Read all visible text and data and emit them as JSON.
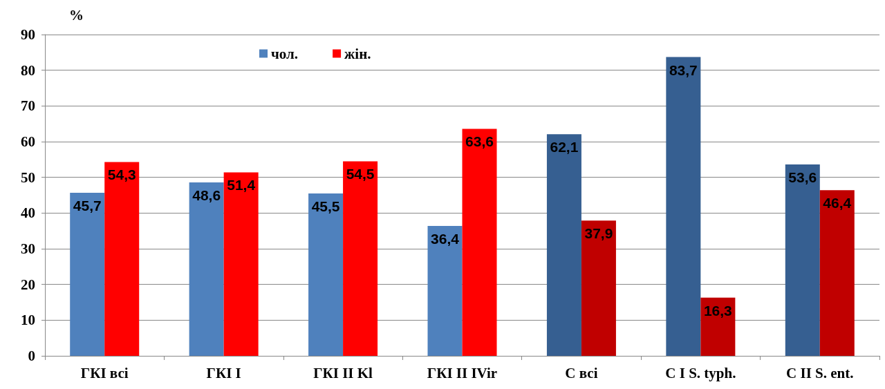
{
  "chart_data": {
    "type": "bar",
    "ylabel": "%",
    "categories": [
      "ГКІ всі",
      "ГКІ І",
      "ГКІ ІІ Kl",
      "ГКІ ІІ IVir",
      "С всі",
      "С І S. typh.",
      "С ІІ S. ent."
    ],
    "series": [
      {
        "name": "чол.",
        "color": "#4f81bd",
        "colors": [
          "#4f81bd",
          "#4f81bd",
          "#4f81bd",
          "#4f81bd",
          "#365f91",
          "#365f91",
          "#365f91"
        ],
        "values": [
          45.7,
          48.6,
          45.5,
          36.4,
          62.1,
          83.7,
          53.6
        ],
        "value_labels": [
          "45,7",
          "48,6",
          "45,5",
          "36,4",
          "62,1",
          "83,7",
          "53,6"
        ]
      },
      {
        "name": "жін.",
        "color": "#ff0000",
        "colors": [
          "#ff0000",
          "#ff0000",
          "#ff0000",
          "#ff0000",
          "#c00000",
          "#c00000",
          "#c00000"
        ],
        "values": [
          54.3,
          51.4,
          54.5,
          63.6,
          37.9,
          16.3,
          46.4
        ],
        "value_labels": [
          "54,3",
          "51,4",
          "54,5",
          "63,6",
          "37,9",
          "16,3",
          "46,4"
        ]
      }
    ],
    "ylim": [
      0,
      90
    ],
    "yticks": [
      0,
      10,
      20,
      30,
      40,
      50,
      60,
      70,
      80,
      90
    ],
    "grid": "y",
    "legend": "top"
  }
}
